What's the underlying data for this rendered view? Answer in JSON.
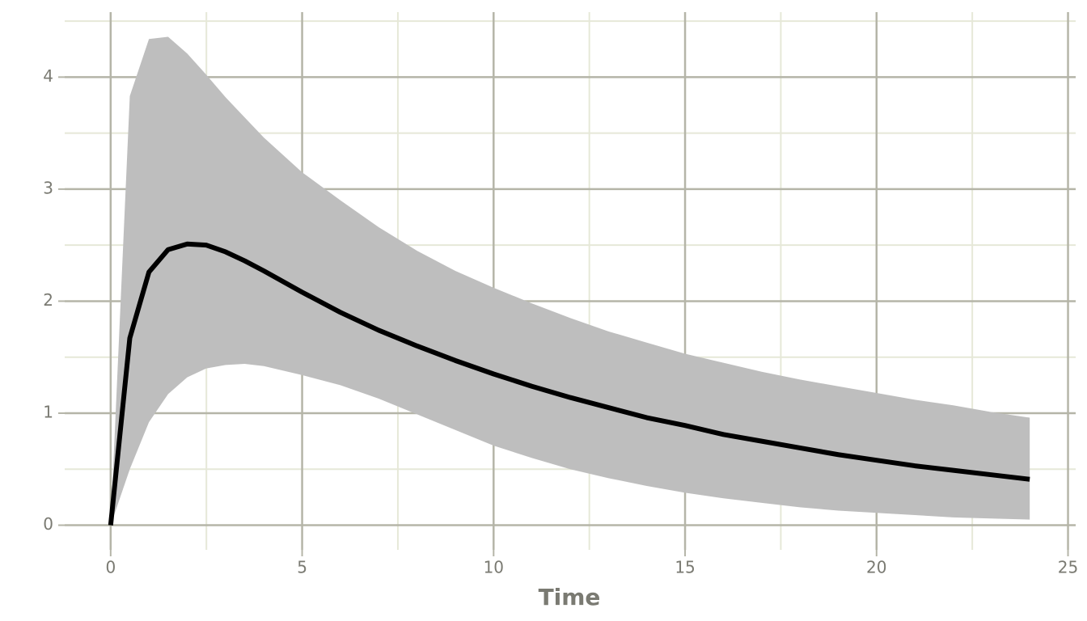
{
  "chart_data": {
    "type": "line",
    "x_label": "Time",
    "x": [
      0,
      0.5,
      1,
      1.5,
      2,
      2.5,
      3,
      3.5,
      4,
      5,
      6,
      7,
      8,
      9,
      10,
      11,
      12,
      13,
      14,
      15,
      16,
      17,
      18,
      19,
      20,
      21,
      22,
      23,
      24
    ],
    "values": [
      0,
      1.67,
      2.26,
      2.46,
      2.51,
      2.5,
      2.44,
      2.36,
      2.27,
      2.08,
      1.9,
      1.74,
      1.6,
      1.47,
      1.35,
      1.24,
      1.14,
      1.05,
      0.96,
      0.89,
      0.81,
      0.75,
      0.69,
      0.63,
      0.58,
      0.53,
      0.49,
      0.45,
      0.41
    ],
    "color": "#000000",
    "ribbon": {
      "color": "#bebebe",
      "upper": [
        0,
        3.83,
        4.34,
        4.36,
        4.21,
        4.02,
        3.82,
        3.64,
        3.46,
        3.15,
        2.9,
        2.66,
        2.45,
        2.27,
        2.12,
        1.98,
        1.85,
        1.73,
        1.63,
        1.53,
        1.45,
        1.37,
        1.3,
        1.24,
        1.18,
        1.12,
        1.07,
        1.01,
        0.96
      ],
      "lower": [
        0,
        0.5,
        0.92,
        1.17,
        1.32,
        1.4,
        1.43,
        1.44,
        1.42,
        1.34,
        1.25,
        1.13,
        0.99,
        0.85,
        0.71,
        0.6,
        0.5,
        0.42,
        0.35,
        0.29,
        0.24,
        0.2,
        0.16,
        0.13,
        0.11,
        0.09,
        0.07,
        0.06,
        0.05
      ]
    },
    "xlim": [
      -1.2,
      25.2
    ],
    "ylim": [
      -0.22,
      4.58
    ],
    "xticks": [
      0,
      5,
      10,
      15,
      20,
      25
    ],
    "yticks": [
      0,
      1,
      2,
      3,
      4
    ],
    "minor_xticks": [
      2.5,
      7.5,
      12.5,
      17.5,
      22.5
    ],
    "minor_yticks": [
      0.5,
      1.5,
      2.5,
      3.5,
      4.5
    ],
    "grid": true
  }
}
